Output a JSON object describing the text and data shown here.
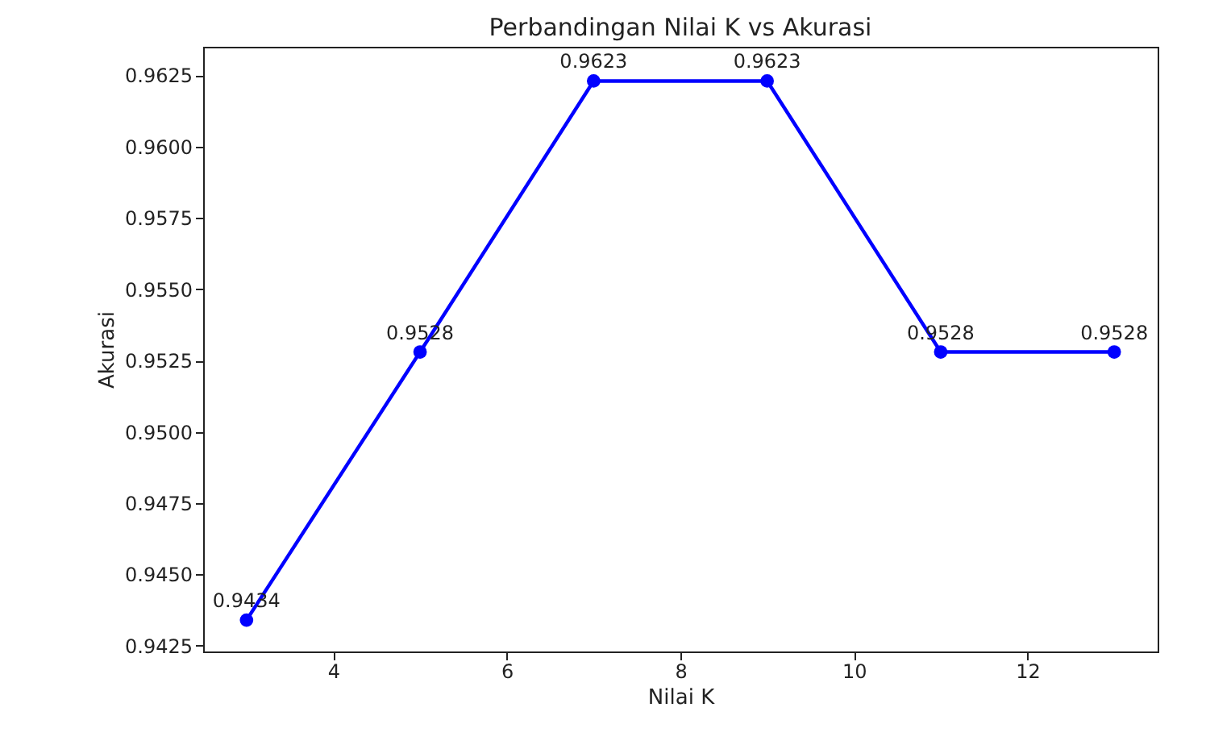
{
  "chart_data": {
    "type": "line",
    "title": "Perbandingan Nilai K vs Akurasi",
    "xlabel": "Nilai K",
    "ylabel": "Akurasi",
    "x": [
      3,
      5,
      7,
      9,
      11,
      13
    ],
    "series": [
      {
        "color": "#0000ff",
        "values": [
          0.9434,
          0.9528,
          0.9623,
          0.9623,
          0.9528,
          0.9528
        ]
      }
    ],
    "xlim": [
      2.5,
      13.5
    ],
    "xticks": [
      4,
      6,
      8,
      10,
      12
    ],
    "ylim": [
      0.9423,
      0.9635
    ],
    "yticks": [
      0.9425,
      {
        "value": 0.945,
        "label": "0.9450"
      },
      0.9475,
      {
        "value": 0.95,
        "label": "0.9500"
      },
      0.9525,
      {
        "value": 0.955,
        "label": "0.9550"
      },
      0.9575,
      {
        "value": 0.96,
        "label": "0.9600"
      },
      0.9625
    ],
    "marker": "circle",
    "line_style": "solid",
    "data_labels": true,
    "grid": false
  }
}
